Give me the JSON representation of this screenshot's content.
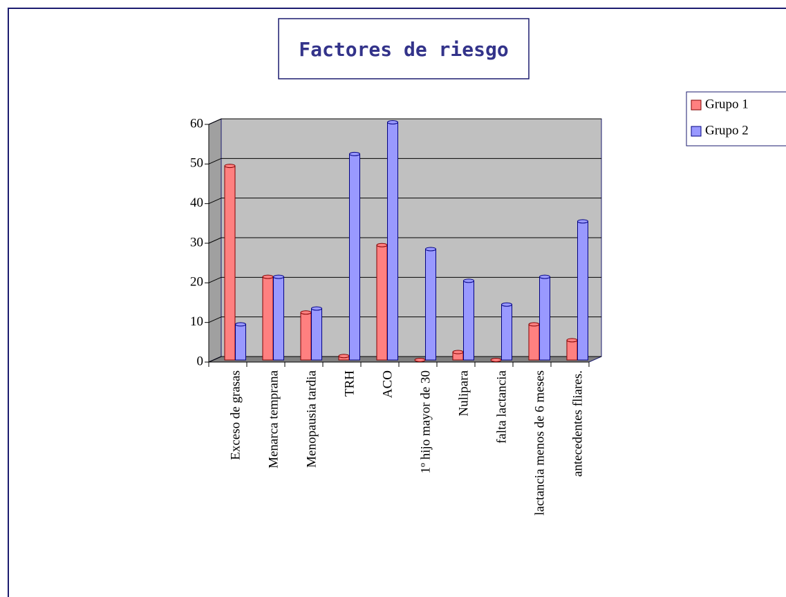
{
  "chart_data": {
    "type": "bar",
    "title": "Factores de riesgo",
    "categories": [
      "Exceso de grasas",
      "Menarca temprana",
      "Menopausia tardia",
      "TRH",
      "ACO",
      "1º hijo mayor de 30",
      "Nulipara",
      "falta lactancia",
      "lactancia menos de 6 meses",
      "antecedentes fliares."
    ],
    "series": [
      {
        "name": "Grupo 1",
        "color": "#ff8080",
        "values": [
          49,
          21,
          12,
          1,
          29,
          0,
          2,
          0,
          9,
          5
        ]
      },
      {
        "name": "Grupo 2",
        "color": "#9999ff",
        "values": [
          9,
          21,
          13,
          52,
          60,
          28,
          20,
          14,
          21,
          35
        ]
      }
    ],
    "ylim": [
      0,
      60
    ],
    "yticks": [
      0,
      10,
      20,
      30,
      40,
      50,
      60
    ],
    "grid": true,
    "legend": "right"
  }
}
